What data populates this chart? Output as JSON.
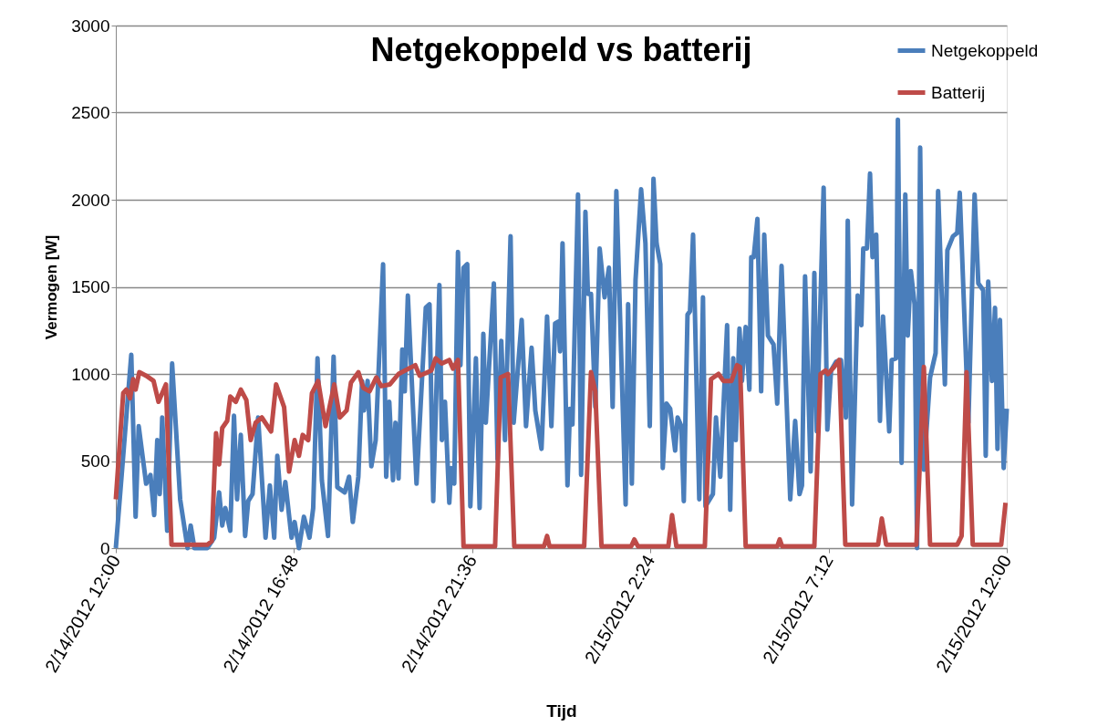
{
  "chart_data": {
    "type": "line",
    "title": "Netgekoppeld vs batterij",
    "xlabel": "Tijd",
    "ylabel": "Vermogen [W]",
    "xlim": [
      "2012-02-14T12:00",
      "2012-02-15T12:00"
    ],
    "xticks": [
      {
        "value": "2012-02-14T12:00",
        "label": "2/14/2012 12:00"
      },
      {
        "value": "2012-02-14T16:48",
        "label": "2/14/2012 16:48"
      },
      {
        "value": "2012-02-14T21:36",
        "label": "2/14/2012 21:36"
      },
      {
        "value": "2012-02-15T02:24",
        "label": "2/15/2012 2:24"
      },
      {
        "value": "2012-02-15T07:12",
        "label": "2/15/2012 7:12"
      },
      {
        "value": "2012-02-15T12:00",
        "label": "2/15/2012 12:00"
      }
    ],
    "ylim": [
      0,
      3000
    ],
    "yticks": [
      0,
      500,
      1000,
      1500,
      2000,
      2500,
      3000
    ],
    "grid": "y",
    "legend": "top right",
    "line_style": "solid",
    "marker": "none",
    "series": [
      {
        "name": "Netgekoppeld",
        "color": "#4a7ebb",
        "x": [
          "2012-02-14T12:00",
          "2012-02-14T12:25",
          "2012-02-14T12:32",
          "2012-02-14T12:37",
          "2012-02-14T12:49",
          "2012-02-14T12:56",
          "2012-02-14T13:02",
          "2012-02-14T13:07",
          "2012-02-14T13:11",
          "2012-02-14T13:15",
          "2012-02-14T13:23",
          "2012-02-14T13:31",
          "2012-02-14T13:44",
          "2012-02-14T13:56",
          "2012-02-14T14:01",
          "2012-02-14T14:07",
          "2012-02-14T14:28",
          "2012-02-14T14:39",
          "2012-02-14T14:47",
          "2012-02-14T14:52",
          "2012-02-14T14:57",
          "2012-02-14T15:05",
          "2012-02-14T15:11",
          "2012-02-14T15:16",
          "2012-02-14T15:22",
          "2012-02-14T15:29",
          "2012-02-14T15:34",
          "2012-02-14T15:41",
          "2012-02-14T15:50",
          "2012-02-14T16:02",
          "2012-02-14T16:09",
          "2012-02-14T16:16",
          "2012-02-14T16:21",
          "2012-02-14T16:28",
          "2012-02-14T16:34",
          "2012-02-14T16:44",
          "2012-02-14T16:49",
          "2012-02-14T16:56",
          "2012-02-14T17:04",
          "2012-02-14T17:13",
          "2012-02-14T17:19",
          "2012-02-14T17:26",
          "2012-02-14T17:33",
          "2012-02-14T17:43",
          "2012-02-14T17:52",
          "2012-02-14T17:58",
          "2012-02-14T18:10",
          "2012-02-14T18:17",
          "2012-02-14T18:23",
          "2012-02-14T18:32",
          "2012-02-14T18:38",
          "2012-02-14T18:41",
          "2012-02-14T18:47",
          "2012-02-14T18:53",
          "2012-02-14T19:00",
          "2012-02-14T19:12",
          "2012-02-14T19:17",
          "2012-02-14T19:22",
          "2012-02-14T19:28",
          "2012-02-14T19:32",
          "2012-02-14T19:37",
          "2012-02-14T19:43",
          "2012-02-14T19:47",
          "2012-02-14T19:52",
          "2012-02-14T20:06",
          "2012-02-14T20:21",
          "2012-02-14T20:27",
          "2012-02-14T20:33",
          "2012-02-14T20:43",
          "2012-02-14T20:47",
          "2012-02-14T20:52",
          "2012-02-14T20:59",
          "2012-02-14T21:02",
          "2012-02-14T21:07",
          "2012-02-14T21:13",
          "2012-02-14T21:17",
          "2012-02-14T21:22",
          "2012-02-14T21:28",
          "2012-02-14T21:33",
          "2012-02-14T21:42",
          "2012-02-14T21:48",
          "2012-02-14T21:54",
          "2012-02-14T21:58",
          "2012-02-14T22:11",
          "2012-02-14T22:17",
          "2012-02-14T22:23",
          "2012-02-14T22:29",
          "2012-02-14T22:38",
          "2012-02-14T22:43",
          "2012-02-14T22:56",
          "2012-02-14T23:03",
          "2012-02-14T23:12",
          "2012-02-14T23:18",
          "2012-02-14T23:28",
          "2012-02-14T23:37",
          "2012-02-14T23:44",
          "2012-02-14T23:50",
          "2012-02-14T23:55",
          "2012-02-14T23:58",
          "2012-02-15T00:02",
          "2012-02-15T00:10",
          "2012-02-15T00:14",
          "2012-02-15T00:18",
          "2012-02-15T00:27",
          "2012-02-15T00:32",
          "2012-02-15T00:39",
          "2012-02-15T00:43",
          "2012-02-15T00:48",
          "2012-02-15T00:55",
          "2012-02-15T01:02",
          "2012-02-15T01:10",
          "2012-02-15T01:17",
          "2012-02-15T01:23",
          "2012-02-15T01:29",
          "2012-02-15T01:35",
          "2012-02-15T01:44",
          "2012-02-15T01:48",
          "2012-02-15T01:54",
          "2012-02-15T02:00",
          "2012-02-15T02:09",
          "2012-02-15T02:16",
          "2012-02-15T02:23",
          "2012-02-15T02:29",
          "2012-02-15T02:34",
          "2012-02-15T02:40",
          "2012-02-15T02:44",
          "2012-02-15T02:50",
          "2012-02-15T02:56",
          "2012-02-15T03:04",
          "2012-02-15T03:08",
          "2012-02-15T03:14",
          "2012-02-15T03:18",
          "2012-02-15T03:24",
          "2012-02-15T03:28",
          "2012-02-15T03:33",
          "2012-02-15T03:43",
          "2012-02-15T03:49",
          "2012-02-15T03:53",
          "2012-02-15T04:05",
          "2012-02-15T04:10",
          "2012-02-15T04:17",
          "2012-02-15T04:28",
          "2012-02-15T04:33",
          "2012-02-15T04:38",
          "2012-02-15T04:42",
          "2012-02-15T04:48",
          "2012-02-15T04:52",
          "2012-02-15T04:58",
          "2012-02-15T05:04",
          "2012-02-15T05:07",
          "2012-02-15T05:11",
          "2012-02-15T05:17",
          "2012-02-15T05:23",
          "2012-02-15T05:28",
          "2012-02-15T05:34",
          "2012-02-15T05:43",
          "2012-02-15T05:49",
          "2012-02-15T05:56",
          "2012-02-15T06:10",
          "2012-02-15T06:18",
          "2012-02-15T06:25",
          "2012-02-15T06:29",
          "2012-02-15T06:34",
          "2012-02-15T06:43",
          "2012-02-15T06:49",
          "2012-02-15T06:53",
          "2012-02-15T07:04",
          "2012-02-15T07:10",
          "2012-02-15T07:16",
          "2012-02-15T07:24",
          "2012-02-15T07:32",
          "2012-02-15T07:40",
          "2012-02-15T07:43",
          "2012-02-15T07:50",
          "2012-02-15T07:59",
          "2012-02-15T08:05",
          "2012-02-15T08:08",
          "2012-02-15T08:14",
          "2012-02-15T08:19",
          "2012-02-15T08:23",
          "2012-02-15T08:29",
          "2012-02-15T08:35",
          "2012-02-15T08:40",
          "2012-02-15T08:50",
          "2012-02-15T08:54",
          "2012-02-15T09:01",
          "2012-02-15T09:04",
          "2012-02-15T09:10",
          "2012-02-15T09:16",
          "2012-02-15T09:20",
          "2012-02-15T09:25",
          "2012-02-15T09:31",
          "2012-02-15T09:35",
          "2012-02-15T09:40",
          "2012-02-15T09:46",
          "2012-02-15T09:56",
          "2012-02-15T10:05",
          "2012-02-15T10:09",
          "2012-02-15T10:20",
          "2012-02-15T10:24",
          "2012-02-15T10:33",
          "2012-02-15T10:40",
          "2012-02-15T10:44",
          "2012-02-15T10:58",
          "2012-02-15T11:08",
          "2012-02-15T11:14",
          "2012-02-15T11:22",
          "2012-02-15T11:26",
          "2012-02-15T11:30",
          "2012-02-15T11:36",
          "2012-02-15T11:41",
          "2012-02-15T11:45",
          "2012-02-15T11:49",
          "2012-02-15T11:55",
          "2012-02-15T12:00"
        ],
        "values": [
          0,
          1110,
          180,
          700,
          370,
          420,
          190,
          620,
          310,
          750,
          100,
          1060,
          280,
          0,
          130,
          0,
          0,
          60,
          320,
          130,
          230,
          100,
          760,
          280,
          650,
          70,
          270,
          310,
          750,
          60,
          360,
          60,
          530,
          220,
          380,
          60,
          150,
          0,
          180,
          60,
          230,
          1090,
          390,
          70,
          1100,
          350,
          320,
          410,
          150,
          410,
          960,
          790,
          960,
          470,
          620,
          1630,
          410,
          840,
          390,
          720,
          400,
          1140,
          900,
          1450,
          370,
          1380,
          1400,
          270,
          1510,
          620,
          840,
          260,
          460,
          370,
          1700,
          1050,
          1610,
          1630,
          240,
          1090,
          230,
          1230,
          720,
          1520,
          510,
          1190,
          620,
          1790,
          720,
          1310,
          700,
          1150,
          790,
          570,
          1330,
          700,
          1290,
          1300,
          1130,
          1750,
          360,
          800,
          710,
          2030,
          420,
          1930,
          1460,
          1460,
          810,
          1720,
          1440,
          1610,
          810,
          2050,
          1330,
          250,
          1400,
          370,
          1540,
          2060,
          1750,
          700,
          2120,
          1750,
          1630,
          460,
          830,
          800,
          560,
          750,
          700,
          270,
          1340,
          1360,
          1800,
          280,
          1440,
          240,
          310,
          750,
          410,
          1280,
          220,
          1090,
          620,
          1260,
          960,
          1270,
          910,
          1670,
          1670,
          1890,
          900,
          1800,
          1220,
          1170,
          830,
          1620,
          280,
          730,
          310,
          360,
          1560,
          440,
          1580,
          670,
          2070,
          680,
          1020,
          1070,
          1080,
          750,
          1880,
          250,
          1450,
          1280,
          1720,
          1720,
          2150,
          1670,
          1800,
          730,
          1330,
          670,
          1080,
          1090,
          2460,
          490,
          2030,
          1220,
          1590,
          1400,
          0,
          2300,
          450,
          980,
          1120,
          2050,
          940,
          1710,
          1790,
          1810,
          2040,
          720,
          2030,
          1520,
          1480,
          530,
          1530,
          960,
          1380,
          570,
          1310,
          460,
          800
        ]
      },
      {
        "name": "Batterij",
        "color": "#be4b48",
        "x": [
          "2012-02-14T12:00",
          "2012-02-14T12:12",
          "2012-02-14T12:17",
          "2012-02-14T12:23",
          "2012-02-14T12:28",
          "2012-02-14T12:32",
          "2012-02-14T12:38",
          "2012-02-14T12:49",
          "2012-02-14T13:01",
          "2012-02-14T13:09",
          "2012-02-14T13:21",
          "2012-02-14T13:30",
          "2012-02-14T14:28",
          "2012-02-14T14:35",
          "2012-02-14T14:42",
          "2012-02-14T14:47",
          "2012-02-14T14:52",
          "2012-02-14T15:00",
          "2012-02-14T15:05",
          "2012-02-14T15:14",
          "2012-02-14T15:22",
          "2012-02-14T15:31",
          "2012-02-14T15:38",
          "2012-02-14T15:46",
          "2012-02-14T15:56",
          "2012-02-14T16:11",
          "2012-02-14T16:19",
          "2012-02-14T16:32",
          "2012-02-14T16:40",
          "2012-02-14T16:49",
          "2012-02-14T16:56",
          "2012-02-14T17:02",
          "2012-02-14T17:11",
          "2012-02-14T17:17",
          "2012-02-14T17:27",
          "2012-02-14T17:39",
          "2012-02-14T17:53",
          "2012-02-14T18:02",
          "2012-02-14T18:13",
          "2012-02-14T18:20",
          "2012-02-14T18:32",
          "2012-02-14T18:40",
          "2012-02-14T18:50",
          "2012-02-14T19:01",
          "2012-02-14T19:09",
          "2012-02-14T19:23",
          "2012-02-14T19:37",
          "2012-02-14T19:53",
          "2012-02-14T20:04",
          "2012-02-14T20:11",
          "2012-02-14T20:30",
          "2012-02-14T20:37",
          "2012-02-14T20:47",
          "2012-02-14T20:59",
          "2012-02-14T21:05",
          "2012-02-14T21:13",
          "2012-02-14T21:22",
          "2012-02-14T22:13",
          "2012-02-14T22:22",
          "2012-02-14T22:34",
          "2012-02-14T22:44",
          "2012-02-14T23:32",
          "2012-02-14T23:37",
          "2012-02-14T23:41",
          "2012-02-15T00:37",
          "2012-02-15T00:48",
          "2012-02-15T00:55",
          "2012-02-15T01:05",
          "2012-02-15T01:53",
          "2012-02-15T01:58",
          "2012-02-15T02:04",
          "2012-02-15T02:53",
          "2012-02-15T02:59",
          "2012-02-15T03:06",
          "2012-02-15T03:52",
          "2012-02-15T04:02",
          "2012-02-15T04:14",
          "2012-02-15T04:22",
          "2012-02-15T04:35",
          "2012-02-15T04:44",
          "2012-02-15T04:49",
          "2012-02-15T04:58",
          "2012-02-15T05:49",
          "2012-02-15T05:53",
          "2012-02-15T05:57",
          "2012-02-15T06:49",
          "2012-02-15T06:59",
          "2012-02-15T07:07",
          "2012-02-15T07:11",
          "2012-02-15T07:21",
          "2012-02-15T07:29",
          "2012-02-15T07:39",
          "2012-02-15T08:32",
          "2012-02-15T08:38",
          "2012-02-15T08:45",
          "2012-02-15T09:34",
          "2012-02-15T09:46",
          "2012-02-15T09:56",
          "2012-02-15T10:40",
          "2012-02-15T10:47",
          "2012-02-15T10:55",
          "2012-02-15T11:05",
          "2012-02-15T11:51",
          "2012-02-15T11:58"
        ],
        "values": [
          280,
          890,
          910,
          860,
          970,
          910,
          1010,
          990,
          960,
          840,
          940,
          20,
          20,
          40,
          660,
          480,
          690,
          730,
          870,
          840,
          910,
          850,
          620,
          720,
          750,
          670,
          940,
          810,
          440,
          620,
          530,
          650,
          620,
          890,
          960,
          700,
          940,
          750,
          790,
          950,
          1010,
          920,
          900,
          980,
          930,
          940,
          1000,
          1030,
          1050,
          990,
          1020,
          1090,
          1060,
          1080,
          1030,
          1080,
          10,
          10,
          980,
          1000,
          10,
          10,
          70,
          10,
          10,
          1010,
          900,
          10,
          10,
          50,
          10,
          10,
          190,
          10,
          10,
          970,
          1000,
          960,
          960,
          1050,
          1040,
          10,
          10,
          50,
          10,
          10,
          1000,
          1020,
          1000,
          1040,
          1080,
          20,
          20,
          170,
          20,
          20,
          1040,
          20,
          20,
          70,
          1010,
          20,
          20,
          260
        ]
      }
    ]
  }
}
